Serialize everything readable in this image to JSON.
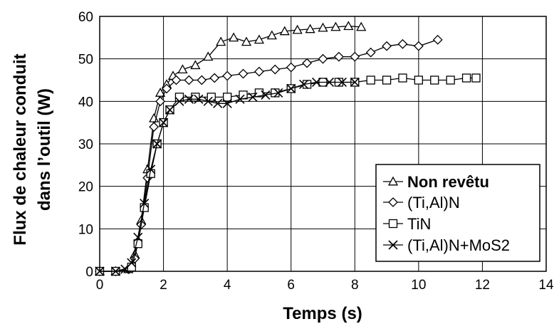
{
  "chart_data": {
    "type": "line",
    "title": "",
    "xlabel": "Temps (s)",
    "ylabel_line1": "Flux de chaleur conduit",
    "ylabel_line2": "dans l’outil (W)",
    "xlim": [
      0,
      14
    ],
    "ylim": [
      0,
      60
    ],
    "x_ticks": [
      0,
      2,
      4,
      6,
      8,
      10,
      12,
      14
    ],
    "y_ticks": [
      0,
      10,
      20,
      30,
      40,
      50,
      60
    ],
    "grid": true,
    "legend_position": "bottom-right",
    "series": [
      {
        "name": "Non revêtu",
        "marker": "triangle",
        "x": [
          0,
          0.5,
          0.9,
          1.1,
          1.3,
          1.5,
          1.7,
          1.9,
          2.1,
          2.3,
          2.6,
          3.0,
          3.4,
          3.8,
          4.2,
          4.6,
          5.0,
          5.4,
          5.8,
          6.2,
          6.6,
          7.0,
          7.4,
          7.8,
          8.2
        ],
        "y": [
          0,
          0,
          0.5,
          4,
          12,
          24,
          36,
          42,
          44,
          46,
          47.5,
          48.5,
          50.5,
          54,
          55,
          54,
          54.5,
          55.5,
          56.5,
          56.8,
          57,
          57.3,
          57.5,
          57.7,
          57.5
        ]
      },
      {
        "name": "(Ti,Al)N",
        "marker": "diamond",
        "x": [
          0,
          0.5,
          0.9,
          1.1,
          1.3,
          1.5,
          1.7,
          1.9,
          2.1,
          2.4,
          2.8,
          3.2,
          3.6,
          4.0,
          4.5,
          5.0,
          5.5,
          6.0,
          6.5,
          7.0,
          7.5,
          8.0,
          8.5,
          9.0,
          9.5,
          10.0,
          10.6
        ],
        "y": [
          0,
          0,
          0.5,
          3,
          11,
          22,
          34,
          40,
          43,
          45,
          45,
          45,
          45.5,
          46,
          46.5,
          47,
          47.5,
          48,
          49,
          50,
          50.5,
          50.5,
          51.5,
          53,
          53.5,
          53,
          54.5
        ]
      },
      {
        "name": "TiN",
        "marker": "square",
        "x": [
          0,
          0.5,
          1.0,
          1.2,
          1.4,
          1.6,
          1.8,
          2.0,
          2.2,
          2.5,
          3.0,
          3.5,
          4.0,
          4.5,
          5.0,
          5.5,
          6.0,
          6.5,
          7.0,
          7.5,
          8.0,
          8.5,
          9.0,
          9.5,
          10.0,
          10.5,
          11.0,
          11.5,
          11.8
        ],
        "y": [
          0,
          0,
          1,
          6.5,
          15,
          23,
          30,
          35,
          38,
          41,
          41,
          41,
          41,
          41.5,
          42,
          42,
          43,
          44,
          44.5,
          44.5,
          44.5,
          45,
          45,
          45.5,
          45,
          45,
          45,
          45.5,
          45.5
        ]
      },
      {
        "name": "(Ti,Al)N+MoS2",
        "marker": "cross",
        "x": [
          0,
          0.5,
          0.8,
          1.0,
          1.2,
          1.4,
          1.6,
          1.8,
          2.0,
          2.2,
          2.5,
          2.8,
          3.1,
          3.4,
          3.7,
          4.0,
          4.4,
          4.8,
          5.2,
          5.6,
          6.0,
          6.4,
          6.8,
          7.2,
          7.6,
          8.0
        ],
        "y": [
          0,
          0,
          0.5,
          2,
          8,
          16,
          24,
          30,
          35,
          38,
          40,
          40.5,
          40.5,
          40,
          39.5,
          39.5,
          40.5,
          41,
          41.5,
          42,
          43,
          44,
          44.5,
          44.5,
          44.5,
          44.5
        ]
      }
    ]
  }
}
